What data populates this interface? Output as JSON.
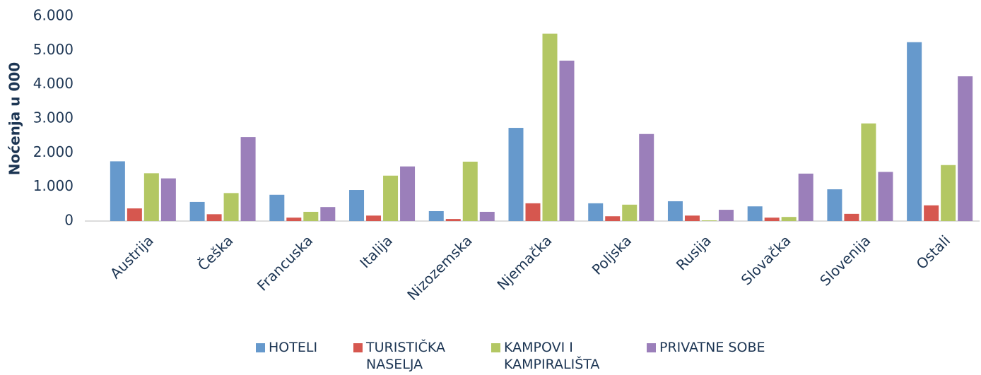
{
  "chart_data": {
    "type": "bar",
    "y_label": "Noćenja u 000",
    "categories": [
      "Austrija",
      "Češka",
      "Francuska",
      "Italija",
      "Nizozemska",
      "Njemačka",
      "Poljska",
      "Rusija",
      "Slovačka",
      "Slovenija",
      "Ostali"
    ],
    "series": [
      {
        "name": "HOTELI",
        "color": "#6699cc",
        "values": [
          1750,
          560,
          770,
          910,
          290,
          2730,
          520,
          580,
          430,
          930,
          5240
        ]
      },
      {
        "name": "TURISTIČKA NASELJA",
        "color": "#d6574f",
        "values": [
          370,
          200,
          100,
          160,
          60,
          520,
          140,
          160,
          100,
          210,
          460
        ]
      },
      {
        "name": "KAMPOVI I KAMPIRALIŠTA",
        "color": "#b3c763",
        "values": [
          1400,
          820,
          270,
          1330,
          1740,
          5490,
          480,
          20,
          120,
          2860,
          1640
        ]
      },
      {
        "name": "PRIVATNE SOBE",
        "color": "#9b7fba",
        "values": [
          1250,
          2460,
          410,
          1600,
          270,
          4700,
          2550,
          330,
          1390,
          1440,
          4240
        ]
      }
    ],
    "ylim": [
      0,
      6000
    ],
    "yticks": [
      0,
      {
        "value": 1000,
        "label": "1.000"
      },
      {
        "value": 2000,
        "label": "2.000"
      },
      {
        "value": 3000,
        "label": "3.000"
      },
      {
        "value": 4000,
        "label": "4.000"
      },
      {
        "value": 5000,
        "label": "5.000"
      },
      {
        "value": 6000,
        "label": "6.000"
      }
    ],
    "legend": "bottom"
  }
}
